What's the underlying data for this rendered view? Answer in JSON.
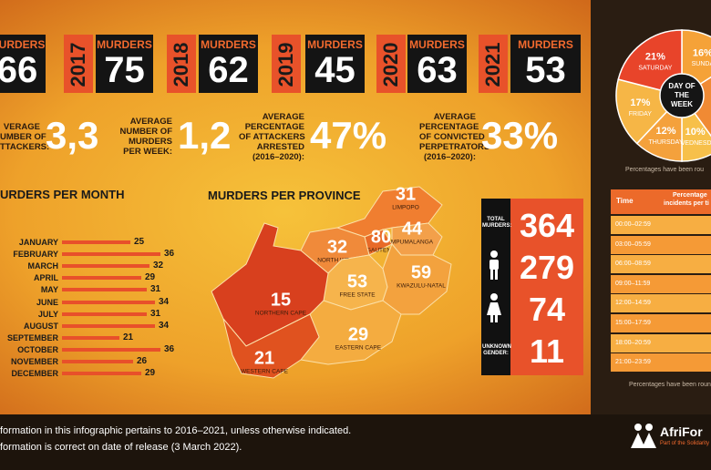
{
  "years": [
    {
      "label": "MURDERS",
      "value": 66
    },
    {
      "year": "2017",
      "label": "MURDERS",
      "value": 75
    },
    {
      "year": "2018",
      "label": "MURDERS",
      "value": 62
    },
    {
      "year": "2019",
      "label": "MURDERS",
      "value": 45
    },
    {
      "year": "2020",
      "label": "MURDERS",
      "value": 63
    },
    {
      "year": "2021",
      "label": "MURDERS",
      "value": 53
    }
  ],
  "stats": [
    {
      "label": [
        "VERAGE",
        "UMBER OF",
        "TTACKERS:"
      ],
      "value": "3,3"
    },
    {
      "label": [
        "AVERAGE",
        "NUMBER OF",
        "MURDERS",
        "PER WEEK:"
      ],
      "value": "1,2"
    },
    {
      "label": [
        "AVERAGE",
        "PERCENTAGE",
        "OF ATTACKERS",
        "ARRESTED",
        "(2016–2020):"
      ],
      "value": "47%"
    },
    {
      "label": [
        "AVERAGE",
        "PERCENTAGE",
        "OF CONVICTED",
        "PERPETRATORS",
        "(2016–2020):"
      ],
      "value": "33%"
    }
  ],
  "months": {
    "title": "URDERS PER MONTH",
    "categories": [
      "JANUARY",
      "FEBRUARY",
      "MARCH",
      "APRIL",
      "MAY",
      "JUNE",
      "JULY",
      "AUGUST",
      "SEPTEMBER",
      "OCTOBER",
      "NOVEMBER",
      "DECEMBER"
    ],
    "values": [
      25,
      36,
      32,
      29,
      31,
      34,
      31,
      34,
      21,
      36,
      26,
      29
    ]
  },
  "provinces": {
    "title": "MURDERS PER PROVINCE",
    "items": [
      {
        "name": "LIMPOPO",
        "value": 31
      },
      {
        "name": "MPUMALANGA",
        "value": 44
      },
      {
        "name": "GAUTENG",
        "value": 80
      },
      {
        "name": "NORTH WEST",
        "value": 32
      },
      {
        "name": "FREE STATE",
        "value": 53
      },
      {
        "name": "KWAZULU-NATAL",
        "value": 59
      },
      {
        "name": "NORTHERN CAPE",
        "value": 15
      },
      {
        "name": "EASTERN CAPE",
        "value": 29
      },
      {
        "name": "WESTERN CAPE",
        "value": 21
      }
    ]
  },
  "totals": {
    "total_label": "TOTAL MURDERS:",
    "total": 364,
    "male": 279,
    "female": 74,
    "unknown_label": "UNKNOWN GENDER:",
    "unknown": 11
  },
  "day_of_week": {
    "title": "DAY OF THE WEEK",
    "slices": [
      {
        "name": "SUNDA",
        "value": 16,
        "label": "16%"
      },
      {
        "name": "WEDNESD",
        "value": 10,
        "label": "10%"
      },
      {
        "name": "THURSDAY",
        "value": 12,
        "label": "12%"
      },
      {
        "name": "FRIDAY",
        "value": 17,
        "label": "17%"
      },
      {
        "name": "SATURDAY",
        "value": 21,
        "label": "21%"
      }
    ],
    "note": "Percentages have been rou"
  },
  "time_table": {
    "headers": [
      "Time",
      "Percentage",
      "incidents per ti"
    ],
    "rows": [
      "00:00–02:59",
      "03:00–05:59",
      "06:00–08:59",
      "09:00–11:59",
      "12:00–14:59",
      "15:00–17:59",
      "18:00–20:59",
      "21:00–23:59"
    ],
    "note": "Percentages have been roun"
  },
  "footer": {
    "lines": [
      "formation in this infographic pertains to 2016–2021, unless otherwise indicated.",
      "formation is correct on date of release (3 March 2022)."
    ],
    "logo": "AfriFor",
    "logo_sub": "Part of the Solidarity M"
  }
}
